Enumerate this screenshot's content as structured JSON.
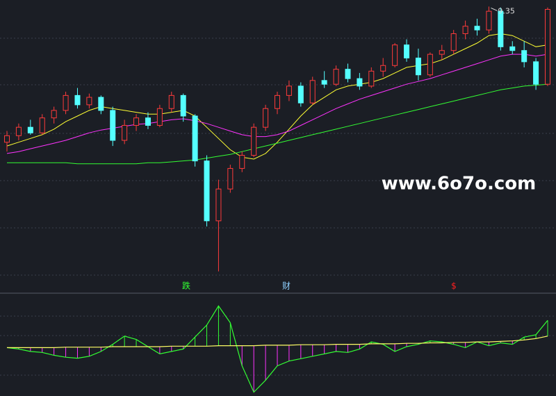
{
  "chart_data": {
    "type": "candlestick",
    "open": [
      7.9,
      7.97,
      8.06,
      8.0,
      8.16,
      8.24,
      8.4,
      8.3,
      8.38,
      8.24,
      7.92,
      8.08,
      8.16,
      8.08,
      8.26,
      8.4,
      8.18,
      7.7,
      7.06,
      7.4,
      7.62,
      7.76,
      8.06,
      8.26,
      8.4,
      8.5,
      8.32,
      8.56,
      8.52,
      8.68,
      8.58,
      8.5,
      8.66,
      8.72,
      8.94,
      8.8,
      8.62,
      8.84,
      8.88,
      9.06,
      9.14,
      9.1,
      9.3,
      8.92,
      8.88,
      8.76,
      8.52
    ],
    "high": [
      8.02,
      8.1,
      8.14,
      8.2,
      8.28,
      8.44,
      8.48,
      8.42,
      8.4,
      8.28,
      8.14,
      8.2,
      8.22,
      8.3,
      8.44,
      8.42,
      8.2,
      7.76,
      7.5,
      7.66,
      7.8,
      8.1,
      8.3,
      8.44,
      8.56,
      8.54,
      8.6,
      8.66,
      8.72,
      8.74,
      8.64,
      8.7,
      8.8,
      8.96,
      9.0,
      8.9,
      8.86,
      8.94,
      9.1,
      9.2,
      9.22,
      9.35,
      9.34,
      8.98,
      8.98,
      8.8,
      9.34
    ],
    "low": [
      7.8,
      7.92,
      7.98,
      7.98,
      8.1,
      8.2,
      8.26,
      8.26,
      8.2,
      7.86,
      7.88,
      8.02,
      8.04,
      8.06,
      8.22,
      8.12,
      7.64,
      7.0,
      6.52,
      7.36,
      7.58,
      7.74,
      8.02,
      8.2,
      8.34,
      8.28,
      8.3,
      8.48,
      8.5,
      8.54,
      8.46,
      8.48,
      8.6,
      8.7,
      8.76,
      8.56,
      8.6,
      8.78,
      8.84,
      9.0,
      9.04,
      9.06,
      8.88,
      8.84,
      8.7,
      8.46,
      8.5
    ],
    "close": [
      7.97,
      8.06,
      8.0,
      8.16,
      8.24,
      8.4,
      8.3,
      8.38,
      8.24,
      7.92,
      8.08,
      8.16,
      8.08,
      8.26,
      8.4,
      8.18,
      7.7,
      7.06,
      7.4,
      7.62,
      7.76,
      8.06,
      8.26,
      8.4,
      8.5,
      8.32,
      8.56,
      8.52,
      8.68,
      8.58,
      8.5,
      8.66,
      8.72,
      8.94,
      8.8,
      8.62,
      8.84,
      8.88,
      9.06,
      9.14,
      9.1,
      9.3,
      8.92,
      8.88,
      8.76,
      8.52,
      9.32
    ],
    "up_color": "#ff3b3b",
    "down_color": "#54ffff",
    "ylim": [
      6.45,
      9.42
    ],
    "series": [
      {
        "color": "#ffff33",
        "values": [
          7.86,
          7.9,
          7.94,
          7.98,
          8.04,
          8.12,
          8.18,
          8.24,
          8.28,
          8.26,
          8.24,
          8.22,
          8.2,
          8.2,
          8.22,
          8.24,
          8.18,
          8.06,
          7.94,
          7.82,
          7.74,
          7.72,
          7.78,
          7.9,
          8.04,
          8.18,
          8.3,
          8.38,
          8.46,
          8.5,
          8.52,
          8.54,
          8.58,
          8.64,
          8.7,
          8.72,
          8.74,
          8.78,
          8.84,
          8.9,
          8.96,
          9.04,
          9.06,
          9.04,
          8.98,
          8.92,
          8.94
        ]
      },
      {
        "color": "#ff33ff",
        "values": [
          7.78,
          7.8,
          7.83,
          7.86,
          7.89,
          7.92,
          7.96,
          8.0,
          8.03,
          8.05,
          8.07,
          8.09,
          8.1,
          8.12,
          8.14,
          8.15,
          8.13,
          8.1,
          8.06,
          8.02,
          7.98,
          7.96,
          7.96,
          7.98,
          8.02,
          8.08,
          8.14,
          8.2,
          8.26,
          8.31,
          8.36,
          8.4,
          8.44,
          8.48,
          8.52,
          8.55,
          8.58,
          8.62,
          8.66,
          8.7,
          8.74,
          8.78,
          8.82,
          8.84,
          8.84,
          8.82,
          8.84
        ]
      },
      {
        "color": "#33ff33",
        "values": [
          7.68,
          7.68,
          7.68,
          7.68,
          7.68,
          7.68,
          7.67,
          7.67,
          7.67,
          7.67,
          7.67,
          7.67,
          7.68,
          7.68,
          7.69,
          7.7,
          7.71,
          7.73,
          7.75,
          7.77,
          7.8,
          7.83,
          7.86,
          7.89,
          7.92,
          7.95,
          7.98,
          8.01,
          8.04,
          8.07,
          8.1,
          8.13,
          8.16,
          8.19,
          8.22,
          8.25,
          8.28,
          8.31,
          8.34,
          8.37,
          8.4,
          8.43,
          8.46,
          8.48,
          8.5,
          8.51,
          8.52
        ]
      }
    ],
    "high_label": 9.35,
    "annotations": [
      {
        "text": "跌",
        "color": "#33ff33"
      },
      {
        "text": "财",
        "color": "#8fd0ff"
      },
      {
        "text": "$",
        "color": "#ff2020"
      }
    ],
    "watermark": "www.6o7o.com",
    "indicator": {
      "ylim": [
        -1.0,
        1.0
      ],
      "series": [
        {
          "color": "#33ff33",
          "values": [
            -0.02,
            -0.05,
            -0.1,
            -0.12,
            -0.18,
            -0.22,
            -0.24,
            -0.2,
            -0.1,
            0.05,
            0.22,
            0.15,
            0.0,
            -0.15,
            -0.1,
            -0.05,
            0.2,
            0.45,
            0.85,
            0.5,
            -0.4,
            -0.95,
            -0.7,
            -0.4,
            -0.3,
            -0.25,
            -0.2,
            -0.15,
            -0.1,
            -0.12,
            -0.05,
            0.1,
            0.05,
            -0.1,
            0.0,
            0.05,
            0.12,
            0.1,
            0.05,
            -0.02,
            0.1,
            0.02,
            0.08,
            0.05,
            0.2,
            0.25,
            0.55
          ]
        },
        {
          "color": "#ffff66",
          "values": [
            -0.02,
            -0.02,
            -0.02,
            -0.02,
            -0.02,
            -0.01,
            -0.01,
            -0.01,
            -0.01,
            0.0,
            0.0,
            0.0,
            0.0,
            0.0,
            0.01,
            0.01,
            0.01,
            0.01,
            0.02,
            0.02,
            0.02,
            0.02,
            0.03,
            0.03,
            0.03,
            0.04,
            0.04,
            0.04,
            0.05,
            0.05,
            0.05,
            0.06,
            0.06,
            0.06,
            0.07,
            0.07,
            0.08,
            0.08,
            0.09,
            0.09,
            0.1,
            0.1,
            0.11,
            0.12,
            0.14,
            0.17,
            0.22
          ]
        }
      ],
      "pos_color": "#33ff33",
      "neg_color": "#ff33ff"
    }
  }
}
